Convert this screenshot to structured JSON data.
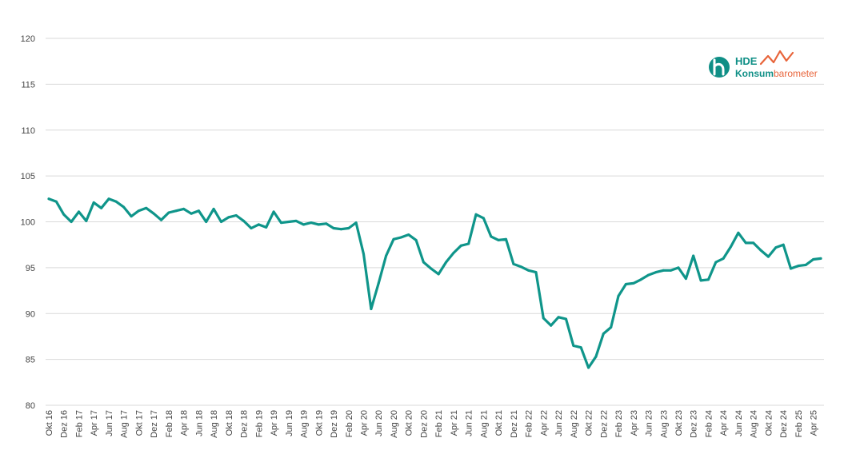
{
  "logo": {
    "brand": "HDE",
    "name_part1": "Konsum",
    "name_part2": "barometer",
    "teal": "#0f8f86",
    "orange": "#e8643a",
    "icon": "h-circle-icon"
  },
  "colors": {
    "line": "#0f958a",
    "grid": "#d9d9d9",
    "tick_text": "#444444"
  },
  "chart_data": {
    "type": "line",
    "ylim": [
      80,
      120
    ],
    "yticks": [
      80,
      85,
      90,
      95,
      100,
      105,
      110,
      115,
      120
    ],
    "grid": true,
    "x_labels": [
      "Okt 16",
      "Dez 16",
      "Feb 17",
      "Apr 17",
      "Jun 17",
      "Aug 17",
      "Okt 17",
      "Dez 17",
      "Feb 18",
      "Apr 18",
      "Jun 18",
      "Aug 18",
      "Okt 18",
      "Dez 18",
      "Feb 19",
      "Apr 19",
      "Jun 19",
      "Aug 19",
      "Okt 19",
      "Dez 19",
      "Feb 20",
      "Apr 20",
      "Jun 20",
      "Aug 20",
      "Okt 20",
      "Dez 20",
      "Feb 21",
      "Apr 21",
      "Jun 21",
      "Aug 21",
      "Okt 21",
      "Dez 21",
      "Feb 22",
      "Apr 22",
      "Jun 22",
      "Aug 22",
      "Okt 22",
      "Dez 22",
      "Feb 23",
      "Apr 23",
      "Jun 23",
      "Aug 23",
      "Okt 23",
      "Dez 23",
      "Feb 24",
      "Apr 24",
      "Jun 24",
      "Aug 24",
      "Okt 24",
      "Dez 24",
      "Feb 25",
      "Apr 25"
    ],
    "series": [
      {
        "values": [
          102.5,
          102.2,
          100.8,
          100.0,
          101.1,
          100.1,
          102.1,
          101.5,
          102.5,
          102.2,
          101.6,
          100.6,
          101.2,
          101.5,
          100.9,
          100.2,
          101.0,
          101.2,
          101.4,
          100.9,
          101.2,
          100.0,
          101.4,
          100.0,
          100.5,
          100.7,
          100.1,
          99.3,
          99.7,
          99.4,
          101.1,
          99.9,
          100.0,
          100.1,
          99.7,
          99.9,
          99.7,
          99.8,
          99.3,
          99.2,
          99.3,
          99.9,
          96.5,
          90.5,
          93.3,
          96.3,
          98.1,
          98.3,
          98.6,
          98.0,
          95.6,
          94.9,
          94.3,
          95.6,
          96.6,
          97.4,
          97.6,
          100.8,
          100.4,
          98.4,
          98.0,
          98.1,
          95.4,
          95.1,
          94.7,
          94.5,
          89.5,
          88.7,
          89.6,
          89.4,
          86.5,
          86.3,
          84.1,
          85.3,
          87.8,
          88.5,
          91.9,
          93.2,
          93.3,
          93.7,
          94.2,
          94.5,
          94.7,
          94.7,
          95.0,
          93.8,
          96.3,
          93.6,
          93.7,
          95.6,
          96.0,
          97.3,
          98.8,
          97.7,
          97.7,
          96.9,
          96.2,
          97.2,
          97.5,
          94.9,
          95.2,
          95.3,
          95.9,
          96.0
        ]
      }
    ]
  }
}
